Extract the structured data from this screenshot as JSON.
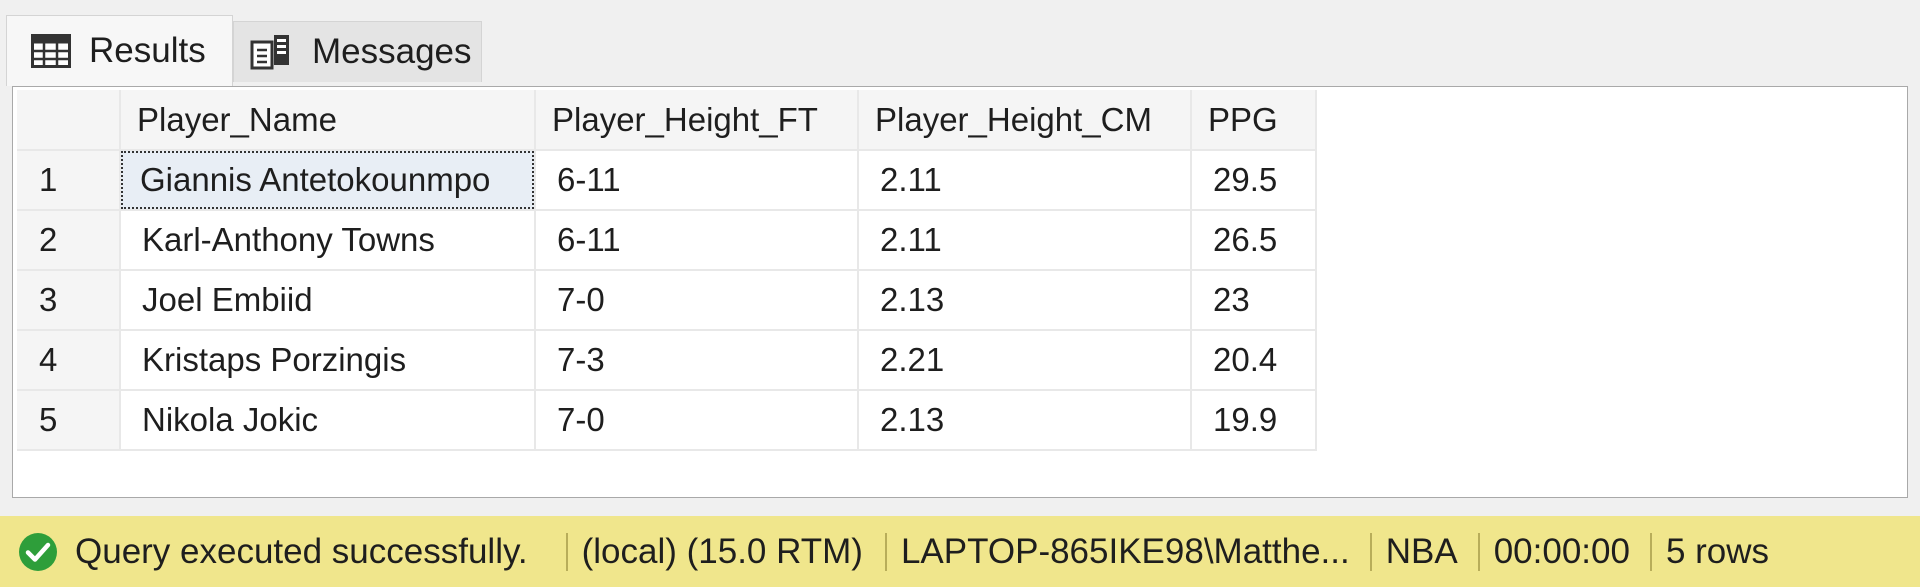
{
  "tabs": [
    {
      "label": "Results",
      "icon": "grid-table-icon",
      "active": true
    },
    {
      "label": "Messages",
      "icon": "messages-icon",
      "active": false
    }
  ],
  "grid": {
    "columns": [
      "Player_Name",
      "Player_Height_FT",
      "Player_Height_CM",
      "PPG"
    ],
    "rows": [
      {
        "num": "1",
        "cells": [
          "Giannis Antetokounmpo",
          "6-11",
          "2.11",
          "29.5"
        ]
      },
      {
        "num": "2",
        "cells": [
          "Karl-Anthony Towns",
          "6-11",
          "2.11",
          "26.5"
        ]
      },
      {
        "num": "3",
        "cells": [
          "Joel Embiid",
          "7-0",
          "2.13",
          "23"
        ]
      },
      {
        "num": "4",
        "cells": [
          "Kristaps Porzingis",
          "7-3",
          "2.21",
          "20.4"
        ]
      },
      {
        "num": "5",
        "cells": [
          "Nikola Jokic",
          "7-0",
          "2.13",
          "19.9"
        ]
      }
    ],
    "selected_cell": "Giannis Antetokounmpo"
  },
  "status": {
    "icon": "success-check-icon",
    "message": "Query executed successfully.",
    "server": "(local) (15.0 RTM)",
    "user": "LAPTOP-865IKE98\\Matthe...",
    "database": "NBA",
    "elapsed": "00:00:00",
    "rows": "5 rows",
    "background_color": "#f0e68c",
    "success_color": "#2e9e3a"
  }
}
